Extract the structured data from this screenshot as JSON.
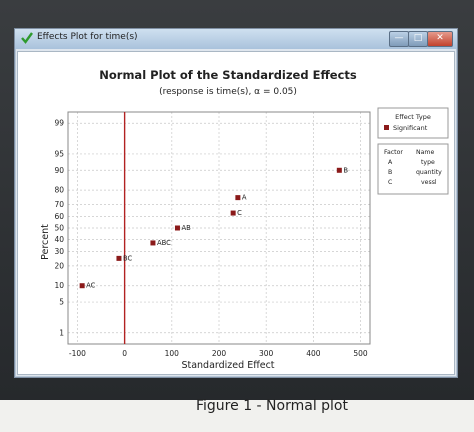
{
  "window": {
    "title": "Effects Plot for time(s)",
    "minimize_label": "—",
    "maximize_label": "□",
    "close_label": "✕",
    "check_icon": "check-icon"
  },
  "caption": "Figure 1 - Normal plot",
  "chart_data": {
    "type": "scatter",
    "title": "Normal Plot of the Standardized Effects",
    "subtitle": "(response is time(s), α = 0.05)",
    "xlabel": "Standardized Effect",
    "ylabel": "Percent",
    "xlim": [
      -120,
      520
    ],
    "xticks": [
      -100,
      0,
      100,
      200,
      300,
      400,
      500
    ],
    "yticks": [
      1,
      5,
      10,
      20,
      30,
      40,
      50,
      60,
      70,
      80,
      90,
      95,
      99
    ],
    "y_scale": "normal probability",
    "grid": true,
    "reference_line_x": 0,
    "points": [
      {
        "label": "AC",
        "x": -90,
        "y": 10
      },
      {
        "label": "BC",
        "x": -12,
        "y": 25
      },
      {
        "label": "ABC",
        "x": 60,
        "y": 37
      },
      {
        "label": "AB",
        "x": 112,
        "y": 50
      },
      {
        "label": "C",
        "x": 230,
        "y": 63
      },
      {
        "label": "A",
        "x": 240,
        "y": 75
      },
      {
        "label": "B",
        "x": 455,
        "y": 90
      }
    ],
    "legend": {
      "title": "Effect Type",
      "entries": [
        "Significant"
      ],
      "marker_color": "#8b1a1a"
    },
    "factor_table": {
      "headers": [
        "Factor",
        "Name"
      ],
      "rows": [
        [
          "A",
          "type"
        ],
        [
          "B",
          "quantity"
        ],
        [
          "C",
          "vessl"
        ]
      ]
    },
    "colors": {
      "marker": "#8b1a1a",
      "reference_line": "#b22222",
      "grid": "#c8c8c8"
    }
  }
}
